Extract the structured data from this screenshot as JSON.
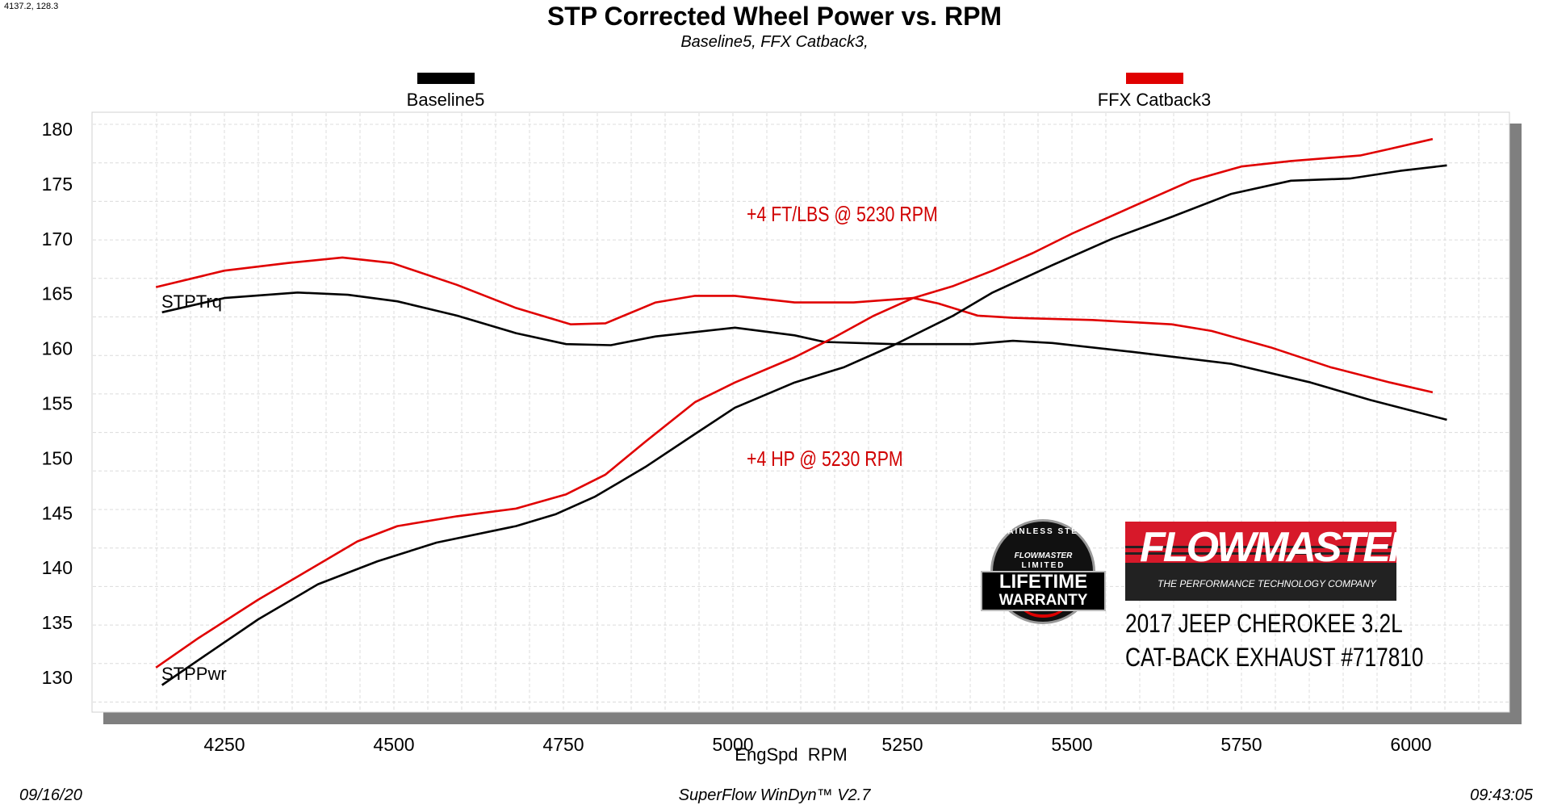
{
  "readout": "4137.2, 128.3",
  "footer": {
    "date": "09/16/20",
    "software": "SuperFlow WinDyn™ V2.7",
    "time": "09:43:05"
  },
  "annotations": {
    "torque_gain": "+4 FT/LBS @ 5230 RPM",
    "power_gain": "+4 HP @ 5230 RPM"
  },
  "branding": {
    "logo_text": "FLOWMASTER",
    "logo_tagline": "THE PERFORMANCE TECHNOLOGY COMPANY",
    "badge_text": [
      "STAINLESS STEEL",
      "FLOWMASTER",
      "LIMITED",
      "LIFETIME",
      "WARRANTY"
    ],
    "vehicle": "2017 JEEP CHEROKEE 3.2L",
    "product": "CAT-BACK EXHAUST #717810"
  },
  "chart_data": {
    "type": "line",
    "title": "STP Corrected Wheel Power vs. RPM",
    "subtitle": "Baseline5, FFX Catback3,",
    "xlabel": "EngSpd  RPM",
    "ylabel": "",
    "xlim": [
      4100,
      6150
    ],
    "ylim": [
      128.7,
      181.3
    ],
    "xticks": [
      4250,
      4500,
      4750,
      5000,
      5250,
      5500,
      5750,
      6000
    ],
    "yticks": [
      130,
      135,
      140,
      145,
      150,
      155,
      160,
      165,
      170,
      175,
      180
    ],
    "grid": true,
    "legend": "top",
    "legend_entries": [
      {
        "name": "Baseline5",
        "color": "#000000"
      },
      {
        "name": "FFX Catback3",
        "color": "#e00000"
      }
    ],
    "curve_labels": {
      "torque": "STPTrq",
      "power": "STPPwr"
    },
    "series": [
      {
        "run": "Baseline5",
        "measure": "STPTrq",
        "color": "#000000",
        "x": [
          4158,
          4250,
          4358,
          4432,
          4505,
          4593,
          4680,
          4754,
          4820,
          4886,
          5003,
          5091,
          5135,
          5237,
          5354,
          5413,
          5471,
          5588,
          5735,
          5852,
          5940,
          6053
        ],
        "y": [
          163.3,
          164.6,
          165.1,
          164.9,
          164.3,
          163.0,
          161.4,
          160.4,
          160.3,
          161.1,
          161.9,
          161.2,
          160.6,
          160.4,
          160.4,
          160.7,
          160.5,
          159.7,
          158.6,
          156.9,
          155.3,
          153.5
        ]
      },
      {
        "run": "FFX Catback3",
        "measure": "STPTrq",
        "color": "#e00000",
        "x": [
          4149,
          4250,
          4344,
          4424,
          4497,
          4593,
          4680,
          4761,
          4812,
          4886,
          4944,
          5003,
          5091,
          5178,
          5266,
          5303,
          5361,
          5413,
          5530,
          5647,
          5706,
          5793,
          5881,
          5969,
          6032
        ],
        "y": [
          165.6,
          167.1,
          167.8,
          168.3,
          167.8,
          165.8,
          163.7,
          162.2,
          162.3,
          164.2,
          164.8,
          164.8,
          164.2,
          164.2,
          164.6,
          164.1,
          163.0,
          162.8,
          162.6,
          162.2,
          161.6,
          160.1,
          158.3,
          156.9,
          156.0
        ]
      },
      {
        "run": "Baseline5",
        "measure": "STPPwr",
        "color": "#000000",
        "x": [
          4158,
          4212,
          4300,
          4388,
          4476,
          4563,
          4680,
          4739,
          4797,
          4871,
          4944,
          5003,
          5091,
          5164,
          5237,
          5325,
          5383,
          5471,
          5559,
          5647,
          5735,
          5823,
          5910,
          5984,
          6053
        ],
        "y": [
          129.3,
          131.6,
          135.3,
          138.5,
          140.6,
          142.3,
          143.8,
          144.9,
          146.5,
          149.2,
          152.2,
          154.6,
          156.9,
          158.3,
          160.3,
          163.0,
          165.1,
          167.6,
          170.0,
          172.0,
          174.1,
          175.3,
          175.5,
          176.2,
          176.7
        ]
      },
      {
        "run": "FFX Catback3",
        "measure": "STPPwr",
        "color": "#e00000",
        "x": [
          4149,
          4212,
          4300,
          4358,
          4446,
          4505,
          4593,
          4680,
          4754,
          4812,
          4871,
          4944,
          5003,
          5091,
          5149,
          5208,
          5266,
          5325,
          5383,
          5442,
          5501,
          5588,
          5676,
          5750,
          5823,
          5925,
          5969,
          6032
        ],
        "y": [
          130.9,
          133.6,
          137.1,
          139.2,
          142.4,
          143.8,
          144.7,
          145.4,
          146.7,
          148.5,
          151.5,
          155.1,
          156.9,
          159.2,
          161.0,
          163.0,
          164.6,
          165.7,
          167.1,
          168.7,
          170.5,
          172.9,
          175.3,
          176.6,
          177.1,
          177.6,
          178.2,
          179.1
        ]
      }
    ]
  }
}
